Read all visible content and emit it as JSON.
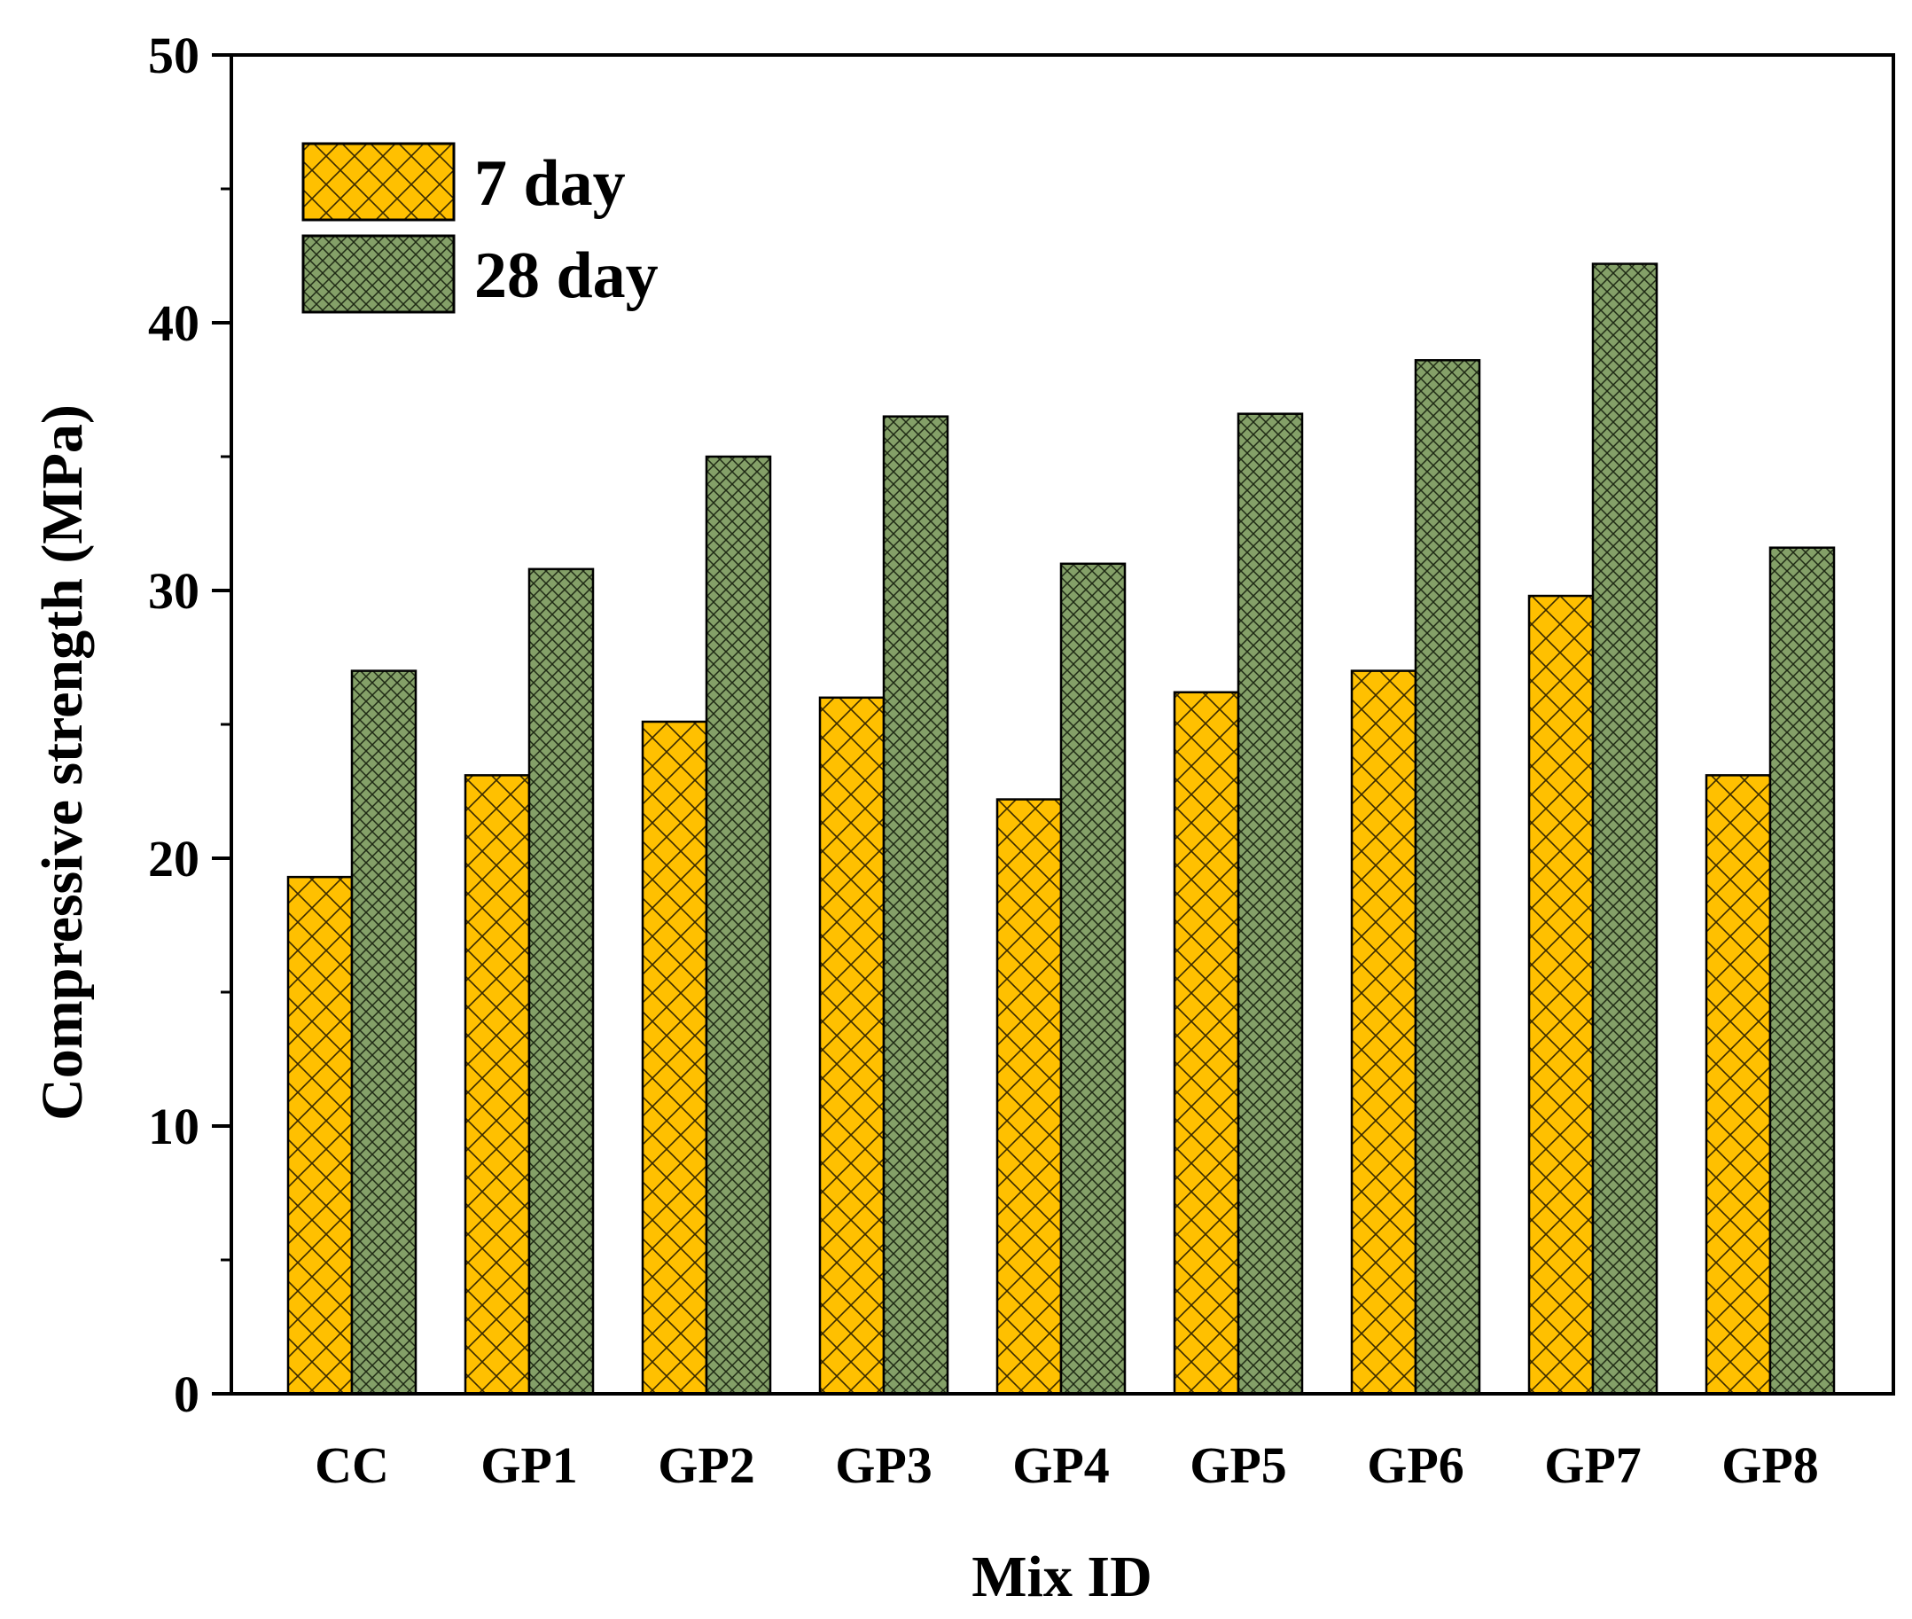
{
  "chart_data": {
    "type": "bar",
    "title": "",
    "xlabel": "Mix ID",
    "ylabel": "Compressive strength (MPa)",
    "ylim": [
      0,
      50
    ],
    "yticks": [
      "0",
      "10",
      "20",
      "30",
      "40",
      "50"
    ],
    "grid": false,
    "legend_position": "top-left",
    "categories": [
      "CC",
      "GP1",
      "GP2",
      "GP3",
      "GP4",
      "GP5",
      "GP6",
      "GP7",
      "GP8"
    ],
    "series": [
      {
        "name": "7 day",
        "color": "#FFC000",
        "pattern": "diagonal-crosshatch",
        "values": [
          19.3,
          23.1,
          25.1,
          26.0,
          22.2,
          26.2,
          27.0,
          29.8,
          23.1
        ]
      },
      {
        "name": "28 day",
        "color": "#84A068",
        "pattern": "dense-crosshatch",
        "values": [
          27.0,
          30.8,
          35.0,
          36.5,
          31.0,
          36.6,
          38.6,
          42.2,
          31.6
        ]
      }
    ]
  }
}
